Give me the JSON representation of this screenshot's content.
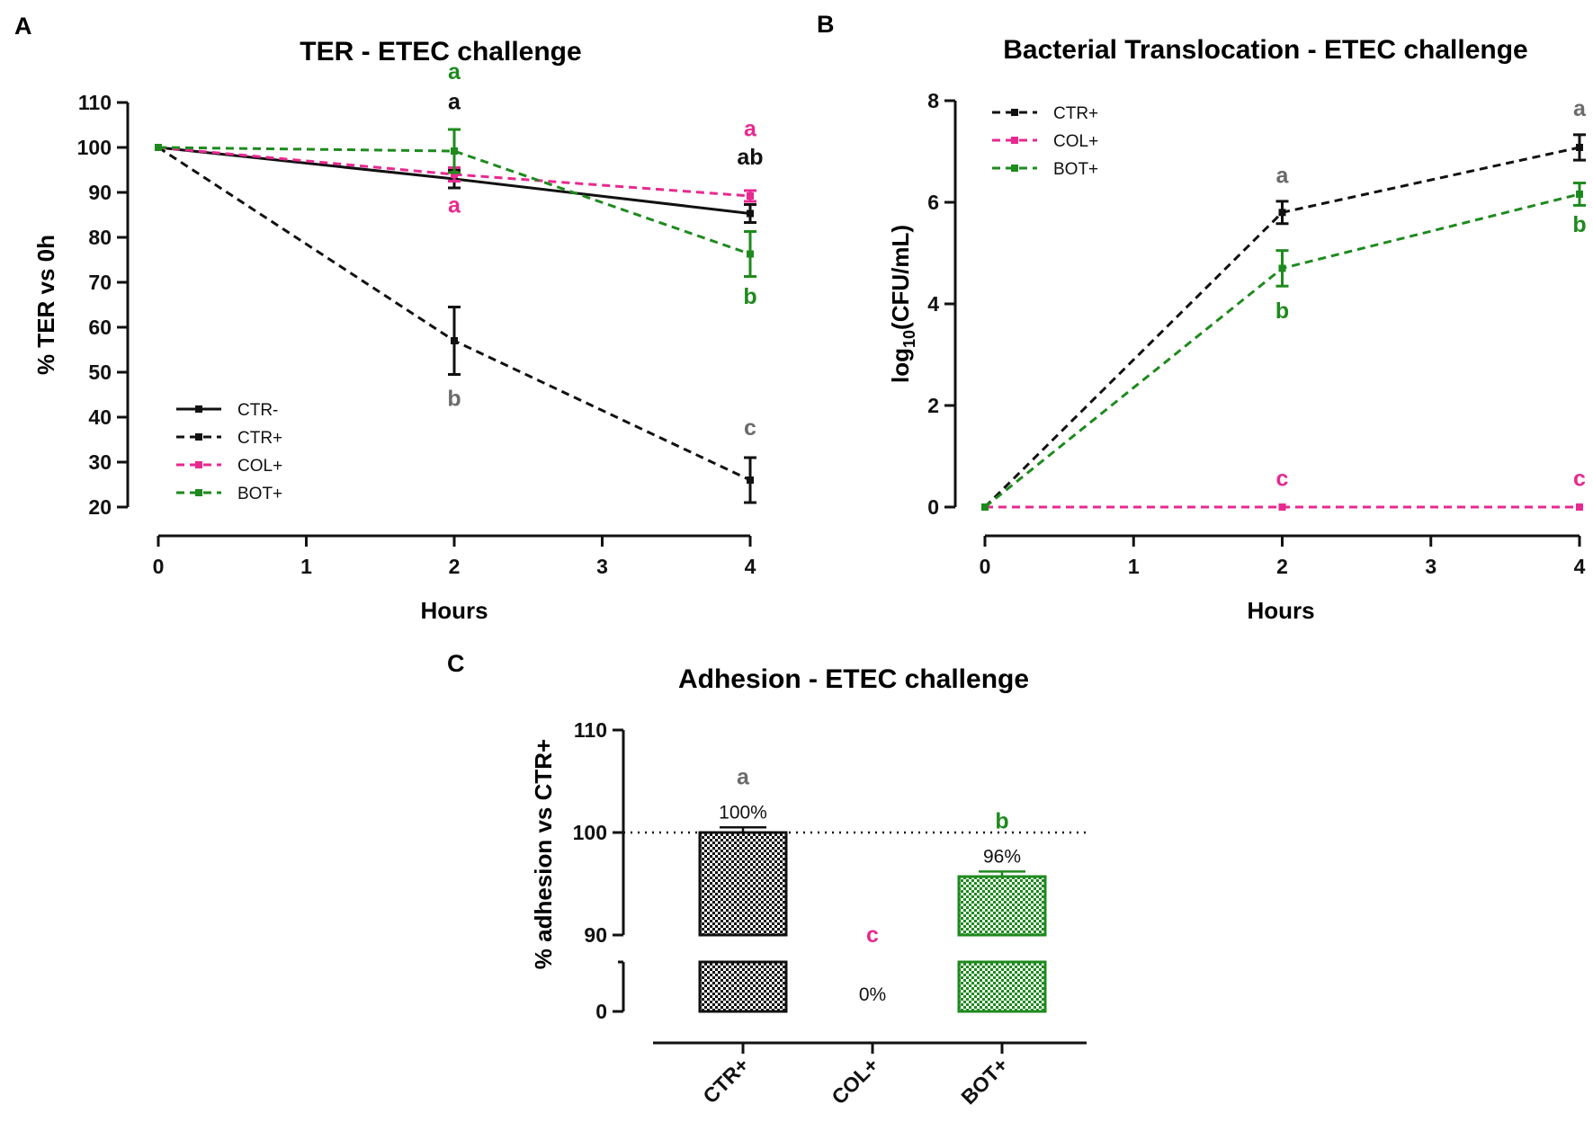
{
  "colors": {
    "black": "#111111",
    "gray": "#6b6b6b",
    "pink": "#e8298f",
    "green": "#1e8a1e"
  },
  "chart_data": [
    {
      "id": "A",
      "panel_label": "A",
      "type": "line",
      "title": "TER - ETEC challenge",
      "xlabel": "Hours",
      "ylabel": "% TER vs 0h",
      "xlim": [
        0,
        4
      ],
      "ylim": [
        20,
        110
      ],
      "xticks": [
        0,
        1,
        2,
        3,
        4
      ],
      "xtick_labels": [
        "0",
        "1",
        "2",
        "3",
        "4"
      ],
      "yticks": [
        20,
        30,
        40,
        50,
        60,
        70,
        80,
        90,
        100,
        110
      ],
      "ytick_labels": [
        "20",
        "30",
        "40",
        "50",
        "60",
        "70",
        "80",
        "90",
        "100",
        "110"
      ],
      "legend_position": "bottom-left",
      "series": [
        {
          "name": "CTR-",
          "color": "#111111",
          "dash": "solid",
          "x": [
            0,
            2,
            4
          ],
          "y": [
            100,
            93,
            85.3
          ],
          "err": [
            0,
            2.0,
            2.0
          ]
        },
        {
          "name": "CTR+",
          "color": "#111111",
          "dash": "dashed",
          "x": [
            0,
            2,
            4
          ],
          "y": [
            100,
            57,
            26
          ],
          "err": [
            0,
            7.5,
            5.0
          ]
        },
        {
          "name": "COL+",
          "color": "#e8298f",
          "dash": "dashed",
          "x": [
            0,
            2,
            4
          ],
          "y": [
            100,
            94,
            89.2
          ],
          "err": [
            0,
            1.5,
            1.2
          ]
        },
        {
          "name": "BOT+",
          "color": "#1e8a1e",
          "dash": "dashed",
          "x": [
            0,
            2,
            4
          ],
          "y": [
            100,
            99.2,
            76.3
          ],
          "err": [
            0,
            4.8,
            5.0
          ]
        }
      ],
      "annotations": [
        {
          "text": "a",
          "x": 2,
          "y": 115.2,
          "color": "#1e8a1e"
        },
        {
          "text": "a",
          "x": 2,
          "y": 108.5,
          "color": "#111111"
        },
        {
          "text": "a",
          "x": 2,
          "y": 85.5,
          "color": "#e8298f"
        },
        {
          "text": "b",
          "x": 2,
          "y": 42.5,
          "color": "#6b6b6b"
        },
        {
          "text": "a",
          "x": 4,
          "y": 102.5,
          "color": "#e8298f"
        },
        {
          "text": "ab",
          "x": 4,
          "y": 96.2,
          "color": "#111111"
        },
        {
          "text": "b",
          "x": 4,
          "y": 65.2,
          "color": "#1e8a1e"
        },
        {
          "text": "c",
          "x": 4,
          "y": 36.0,
          "color": "#6b6b6b"
        }
      ]
    },
    {
      "id": "B",
      "panel_label": "B",
      "type": "line",
      "title": "Bacterial Translocation - ETEC challenge",
      "xlabel": "Hours",
      "ylabel_main": "log",
      "ylabel_sub": "10",
      "ylabel_rest": "(CFU/mL)",
      "xlim": [
        0,
        4
      ],
      "ylim": [
        0,
        8
      ],
      "xticks": [
        0,
        1,
        2,
        3,
        4
      ],
      "xtick_labels": [
        "0",
        "1",
        "2",
        "3",
        "4"
      ],
      "yticks": [
        0,
        2,
        4,
        6,
        8
      ],
      "ytick_labels": [
        "0",
        "2",
        "4",
        "6",
        "8"
      ],
      "legend_position": "top-left",
      "series": [
        {
          "name": "CTR+",
          "color": "#111111",
          "dash": "dashed",
          "x": [
            0,
            2,
            4
          ],
          "y": [
            0,
            5.8,
            7.08
          ],
          "err": [
            0,
            0.22,
            0.25
          ]
        },
        {
          "name": "COL+",
          "color": "#e8298f",
          "dash": "dashed",
          "x": [
            0,
            2,
            4
          ],
          "y": [
            0,
            0,
            0
          ],
          "err": [
            0,
            0,
            0
          ]
        },
        {
          "name": "BOT+",
          "color": "#1e8a1e",
          "dash": "dashed",
          "x": [
            0,
            2,
            4
          ],
          "y": [
            0,
            4.7,
            6.16
          ],
          "err": [
            0,
            0.35,
            0.22
          ]
        }
      ],
      "annotations": [
        {
          "text": "a",
          "x": 2,
          "y": 6.38,
          "color": "#6b6b6b"
        },
        {
          "text": "b",
          "x": 2,
          "y": 3.72,
          "color": "#1e8a1e"
        },
        {
          "text": "c",
          "x": 2,
          "y": 0.42,
          "color": "#e8298f"
        },
        {
          "text": "a",
          "x": 4,
          "y": 7.7,
          "color": "#6b6b6b"
        },
        {
          "text": "b",
          "x": 4,
          "y": 5.42,
          "color": "#1e8a1e"
        },
        {
          "text": "c",
          "x": 4,
          "y": 0.42,
          "color": "#e8298f"
        }
      ]
    },
    {
      "id": "C",
      "panel_label": "C",
      "type": "bar",
      "title": "Adhesion - ETEC challenge",
      "ylabel": "% adhesion vs CTR+",
      "categories": [
        "CTR+",
        "COL+",
        "BOT+"
      ],
      "values": [
        100,
        0,
        95.7
      ],
      "errors": [
        0.5,
        0,
        0.5
      ],
      "bar_colors": [
        "#111111",
        "#e8298f",
        "#1e8a1e"
      ],
      "value_labels": [
        "100%",
        "0%",
        "96%"
      ],
      "letters": [
        {
          "text": "a",
          "color": "#6b6b6b"
        },
        {
          "text": "c",
          "color": "#e8298f"
        },
        {
          "text": "b",
          "color": "#1e8a1e"
        }
      ],
      "broken_axis": {
        "lower_range": [
          0,
          90
        ],
        "upper_range": [
          90,
          110
        ]
      },
      "yticks": [
        0,
        90,
        100,
        110
      ],
      "ytick_labels": [
        "0",
        "90",
        "100",
        "110"
      ],
      "reference_line": 100
    }
  ]
}
